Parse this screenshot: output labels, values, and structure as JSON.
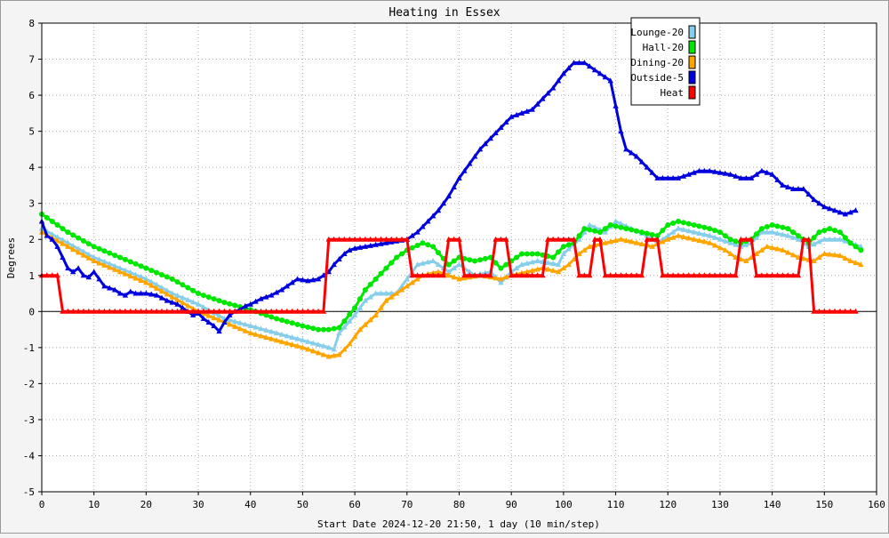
{
  "chart_data": {
    "type": "line",
    "title": "Heating in Essex",
    "xlabel": "Start Date 2024-12-20 21:50, 1 day (10 min/step)",
    "ylabel": "Degrees",
    "xlim": [
      0,
      160
    ],
    "ylim": [
      -5,
      8
    ],
    "x_ticks": [
      0,
      10,
      20,
      30,
      40,
      50,
      60,
      70,
      80,
      90,
      100,
      110,
      120,
      130,
      140,
      150,
      160
    ],
    "y_ticks": [
      -5,
      -4,
      -3,
      -2,
      -1,
      0,
      1,
      2,
      3,
      4,
      5,
      6,
      7,
      8
    ],
    "grid": true,
    "legend_position": "top-right",
    "series": [
      {
        "name": "Lounge-20",
        "color": "#87ceeb",
        "marker": "triangle",
        "points": [
          [
            0,
            2.3
          ],
          [
            5,
            1.9
          ],
          [
            10,
            1.5
          ],
          [
            15,
            1.2
          ],
          [
            20,
            0.9
          ],
          [
            25,
            0.5
          ],
          [
            30,
            0.2
          ],
          [
            35,
            -0.2
          ],
          [
            40,
            -0.4
          ],
          [
            45,
            -0.6
          ],
          [
            50,
            -0.8
          ],
          [
            55,
            -1.0
          ],
          [
            56,
            -1.05
          ],
          [
            57,
            -0.6
          ],
          [
            60,
            -0.1
          ],
          [
            62,
            0.3
          ],
          [
            64,
            0.5
          ],
          [
            68,
            0.5
          ],
          [
            70,
            0.9
          ],
          [
            72,
            1.3
          ],
          [
            75,
            1.4
          ],
          [
            78,
            1.1
          ],
          [
            80,
            1.3
          ],
          [
            83,
            1.0
          ],
          [
            86,
            1.1
          ],
          [
            88,
            0.8
          ],
          [
            90,
            1.1
          ],
          [
            92,
            1.3
          ],
          [
            95,
            1.4
          ],
          [
            99,
            1.3
          ],
          [
            100,
            1.6
          ],
          [
            103,
            2.0
          ],
          [
            105,
            2.4
          ],
          [
            108,
            2.2
          ],
          [
            110,
            2.5
          ],
          [
            113,
            2.3
          ],
          [
            116,
            2.1
          ],
          [
            118,
            1.9
          ],
          [
            120,
            2.1
          ],
          [
            122,
            2.3
          ],
          [
            125,
            2.2
          ],
          [
            128,
            2.1
          ],
          [
            132,
            1.9
          ],
          [
            134,
            1.8
          ],
          [
            136,
            1.9
          ],
          [
            138,
            2.2
          ],
          [
            140,
            2.2
          ],
          [
            143,
            2.1
          ],
          [
            145,
            2.0
          ],
          [
            147,
            1.8
          ],
          [
            150,
            2.0
          ],
          [
            153,
            2.0
          ],
          [
            155,
            1.9
          ],
          [
            157,
            1.8
          ]
        ]
      },
      {
        "name": "Hall-20",
        "color": "#00e600",
        "marker": "circle",
        "points": [
          [
            0,
            2.7
          ],
          [
            5,
            2.2
          ],
          [
            10,
            1.8
          ],
          [
            15,
            1.5
          ],
          [
            20,
            1.2
          ],
          [
            25,
            0.9
          ],
          [
            30,
            0.5
          ],
          [
            35,
            0.25
          ],
          [
            40,
            0.05
          ],
          [
            45,
            -0.2
          ],
          [
            50,
            -0.4
          ],
          [
            53,
            -0.5
          ],
          [
            55,
            -0.5
          ],
          [
            57,
            -0.45
          ],
          [
            60,
            0.1
          ],
          [
            62,
            0.6
          ],
          [
            64,
            0.9
          ],
          [
            66,
            1.2
          ],
          [
            68,
            1.5
          ],
          [
            70,
            1.7
          ],
          [
            73,
            1.9
          ],
          [
            75,
            1.8
          ],
          [
            78,
            1.3
          ],
          [
            80,
            1.5
          ],
          [
            83,
            1.4
          ],
          [
            86,
            1.5
          ],
          [
            88,
            1.2
          ],
          [
            90,
            1.4
          ],
          [
            92,
            1.6
          ],
          [
            95,
            1.6
          ],
          [
            98,
            1.5
          ],
          [
            100,
            1.8
          ],
          [
            102,
            1.9
          ],
          [
            104,
            2.3
          ],
          [
            107,
            2.2
          ],
          [
            109,
            2.4
          ],
          [
            112,
            2.3
          ],
          [
            115,
            2.2
          ],
          [
            118,
            2.1
          ],
          [
            120,
            2.4
          ],
          [
            122,
            2.5
          ],
          [
            125,
            2.4
          ],
          [
            128,
            2.3
          ],
          [
            130,
            2.2
          ],
          [
            132,
            2.0
          ],
          [
            134,
            1.9
          ],
          [
            136,
            2.0
          ],
          [
            138,
            2.3
          ],
          [
            140,
            2.4
          ],
          [
            143,
            2.3
          ],
          [
            145,
            2.1
          ],
          [
            147,
            1.9
          ],
          [
            149,
            2.2
          ],
          [
            151,
            2.3
          ],
          [
            153,
            2.2
          ],
          [
            155,
            1.9
          ],
          [
            157,
            1.7
          ]
        ]
      },
      {
        "name": "Dining-20",
        "color": "#ffa500",
        "marker": "triangle",
        "points": [
          [
            0,
            2.2
          ],
          [
            5,
            1.8
          ],
          [
            10,
            1.4
          ],
          [
            15,
            1.1
          ],
          [
            20,
            0.8
          ],
          [
            25,
            0.4
          ],
          [
            30,
            0.0
          ],
          [
            35,
            -0.3
          ],
          [
            40,
            -0.6
          ],
          [
            45,
            -0.8
          ],
          [
            50,
            -1.0
          ],
          [
            54,
            -1.2
          ],
          [
            55,
            -1.25
          ],
          [
            57,
            -1.2
          ],
          [
            59,
            -0.9
          ],
          [
            61,
            -0.5
          ],
          [
            64,
            -0.1
          ],
          [
            66,
            0.3
          ],
          [
            69,
            0.6
          ],
          [
            71,
            0.8
          ],
          [
            73,
            1.0
          ],
          [
            76,
            1.1
          ],
          [
            78,
            1.0
          ],
          [
            80,
            0.9
          ],
          [
            84,
            1.0
          ],
          [
            88,
            0.9
          ],
          [
            90,
            1.0
          ],
          [
            93,
            1.1
          ],
          [
            96,
            1.2
          ],
          [
            99,
            1.1
          ],
          [
            101,
            1.3
          ],
          [
            103,
            1.6
          ],
          [
            105,
            1.8
          ],
          [
            108,
            1.9
          ],
          [
            111,
            2.0
          ],
          [
            114,
            1.9
          ],
          [
            117,
            1.8
          ],
          [
            120,
            2.0
          ],
          [
            122,
            2.1
          ],
          [
            125,
            2.0
          ],
          [
            128,
            1.9
          ],
          [
            131,
            1.7
          ],
          [
            133,
            1.5
          ],
          [
            135,
            1.4
          ],
          [
            137,
            1.6
          ],
          [
            139,
            1.8
          ],
          [
            142,
            1.7
          ],
          [
            145,
            1.5
          ],
          [
            148,
            1.4
          ],
          [
            150,
            1.6
          ],
          [
            153,
            1.55
          ],
          [
            155,
            1.4
          ],
          [
            157,
            1.3
          ]
        ]
      },
      {
        "name": "Outside-5",
        "color": "#0000dd",
        "marker": "triangle",
        "points": [
          [
            0,
            2.5
          ],
          [
            1,
            2.1
          ],
          [
            2,
            2.0
          ],
          [
            3,
            1.8
          ],
          [
            4,
            1.5
          ],
          [
            5,
            1.2
          ],
          [
            6,
            1.1
          ],
          [
            7,
            1.2
          ],
          [
            8,
            1.0
          ],
          [
            9,
            0.95
          ],
          [
            10,
            1.1
          ],
          [
            11,
            0.9
          ],
          [
            12,
            0.7
          ],
          [
            13,
            0.65
          ],
          [
            14,
            0.6
          ],
          [
            15,
            0.5
          ],
          [
            16,
            0.45
          ],
          [
            17,
            0.55
          ],
          [
            18,
            0.5
          ],
          [
            20,
            0.5
          ],
          [
            22,
            0.45
          ],
          [
            24,
            0.3
          ],
          [
            26,
            0.2
          ],
          [
            27,
            0.1
          ],
          [
            28,
            0.0
          ],
          [
            29,
            -0.1
          ],
          [
            30,
            -0.05
          ],
          [
            31,
            -0.2
          ],
          [
            32,
            -0.3
          ],
          [
            33,
            -0.4
          ],
          [
            34,
            -0.55
          ],
          [
            35,
            -0.3
          ],
          [
            36,
            -0.1
          ],
          [
            37,
            0.0
          ],
          [
            38,
            0.05
          ],
          [
            39,
            0.15
          ],
          [
            40,
            0.2
          ],
          [
            42,
            0.35
          ],
          [
            44,
            0.45
          ],
          [
            46,
            0.6
          ],
          [
            48,
            0.8
          ],
          [
            49,
            0.9
          ],
          [
            51,
            0.85
          ],
          [
            53,
            0.9
          ],
          [
            54,
            1.0
          ],
          [
            55,
            1.1
          ],
          [
            56,
            1.3
          ],
          [
            57,
            1.45
          ],
          [
            58,
            1.6
          ],
          [
            59,
            1.7
          ],
          [
            60,
            1.75
          ],
          [
            62,
            1.8
          ],
          [
            64,
            1.85
          ],
          [
            66,
            1.9
          ],
          [
            68,
            1.95
          ],
          [
            70,
            2.0
          ],
          [
            72,
            2.2
          ],
          [
            74,
            2.5
          ],
          [
            76,
            2.8
          ],
          [
            78,
            3.2
          ],
          [
            80,
            3.7
          ],
          [
            82,
            4.1
          ],
          [
            84,
            4.5
          ],
          [
            86,
            4.8
          ],
          [
            88,
            5.1
          ],
          [
            90,
            5.4
          ],
          [
            92,
            5.5
          ],
          [
            94,
            5.6
          ],
          [
            96,
            5.9
          ],
          [
            98,
            6.2
          ],
          [
            100,
            6.6
          ],
          [
            102,
            6.9
          ],
          [
            104,
            6.9
          ],
          [
            106,
            6.7
          ],
          [
            108,
            6.5
          ],
          [
            109,
            6.4
          ],
          [
            110,
            5.7
          ],
          [
            111,
            5.0
          ],
          [
            112,
            4.5
          ],
          [
            114,
            4.3
          ],
          [
            116,
            4.0
          ],
          [
            118,
            3.7
          ],
          [
            120,
            3.7
          ],
          [
            122,
            3.7
          ],
          [
            124,
            3.8
          ],
          [
            126,
            3.9
          ],
          [
            128,
            3.9
          ],
          [
            130,
            3.85
          ],
          [
            132,
            3.8
          ],
          [
            134,
            3.7
          ],
          [
            136,
            3.7
          ],
          [
            138,
            3.9
          ],
          [
            140,
            3.8
          ],
          [
            142,
            3.5
          ],
          [
            144,
            3.4
          ],
          [
            146,
            3.4
          ],
          [
            148,
            3.1
          ],
          [
            150,
            2.9
          ],
          [
            152,
            2.8
          ],
          [
            154,
            2.7
          ],
          [
            156,
            2.8
          ]
        ]
      },
      {
        "name": "Heat",
        "color": "#ff0000",
        "marker": "triangle",
        "points": [
          [
            0,
            1
          ],
          [
            3,
            1
          ],
          [
            4,
            0
          ],
          [
            54,
            0
          ],
          [
            55,
            2
          ],
          [
            70,
            2
          ],
          [
            71,
            1
          ],
          [
            77,
            1
          ],
          [
            78,
            2
          ],
          [
            80,
            2
          ],
          [
            81,
            1
          ],
          [
            86,
            1
          ],
          [
            87,
            2
          ],
          [
            89,
            2
          ],
          [
            90,
            1
          ],
          [
            96,
            1
          ],
          [
            97,
            2
          ],
          [
            102,
            2
          ],
          [
            103,
            1
          ],
          [
            105,
            1
          ],
          [
            106,
            2
          ],
          [
            107,
            2
          ],
          [
            108,
            1
          ],
          [
            115,
            1
          ],
          [
            116,
            2
          ],
          [
            118,
            2
          ],
          [
            119,
            1
          ],
          [
            133,
            1
          ],
          [
            134,
            2
          ],
          [
            136,
            2
          ],
          [
            137,
            1
          ],
          [
            145,
            1
          ],
          [
            146,
            2
          ],
          [
            147,
            2
          ],
          [
            148,
            0
          ],
          [
            156,
            0
          ]
        ]
      }
    ]
  }
}
